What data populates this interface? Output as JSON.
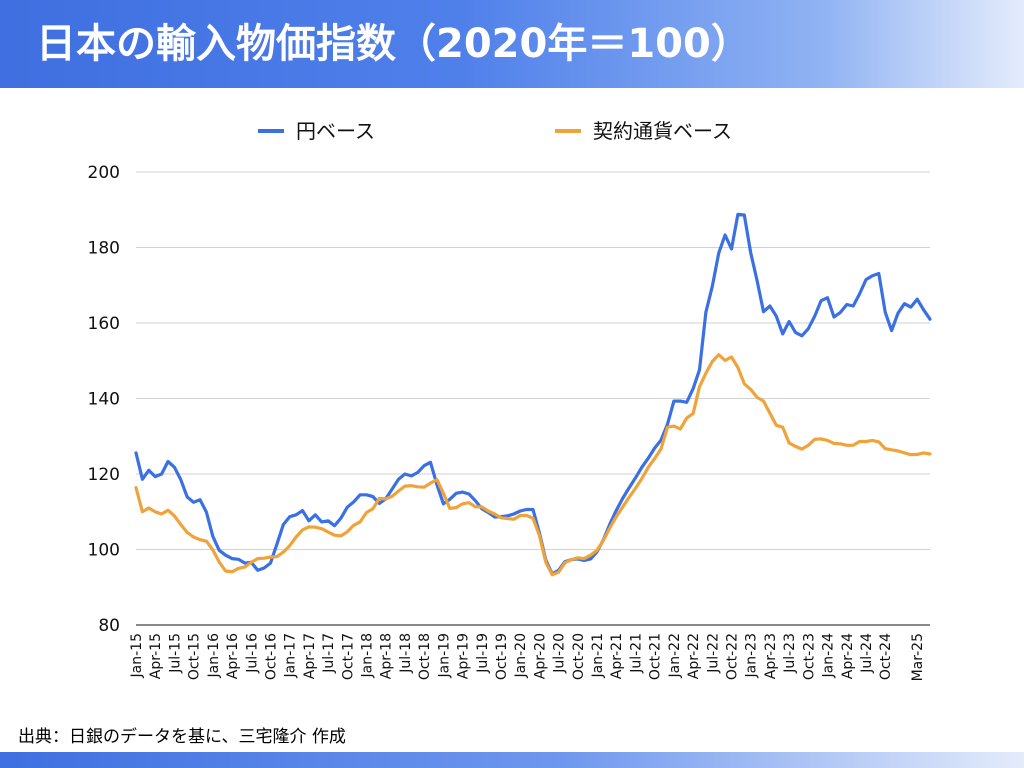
{
  "title": "日本の輸入物価指数（2020年＝100）",
  "source": "出典：日銀のデータを基に、三宅隆介 作成",
  "chart_data": {
    "type": "line",
    "title": "",
    "xlabel": "",
    "ylabel": "",
    "ylim": [
      80,
      200
    ],
    "yticks": [
      80,
      100,
      120,
      140,
      160,
      180,
      200
    ],
    "grid": true,
    "legend_position": "top",
    "x": [
      "Jan-15",
      "Feb-15",
      "Mar-15",
      "Apr-15",
      "May-15",
      "Jun-15",
      "Jul-15",
      "Aug-15",
      "Sep-15",
      "Oct-15",
      "Nov-15",
      "Dec-15",
      "Jan-16",
      "Feb-16",
      "Mar-16",
      "Apr-16",
      "May-16",
      "Jun-16",
      "Jul-16",
      "Aug-16",
      "Sep-16",
      "Oct-16",
      "Nov-16",
      "Dec-16",
      "Jan-17",
      "Feb-17",
      "Mar-17",
      "Apr-17",
      "May-17",
      "Jun-17",
      "Jul-17",
      "Aug-17",
      "Sep-17",
      "Oct-17",
      "Nov-17",
      "Dec-17",
      "Jan-18",
      "Feb-18",
      "Mar-18",
      "Apr-18",
      "May-18",
      "Jun-18",
      "Jul-18",
      "Aug-18",
      "Sep-18",
      "Oct-18",
      "Nov-18",
      "Dec-18",
      "Jan-19",
      "Feb-19",
      "Mar-19",
      "Apr-19",
      "May-19",
      "Jun-19",
      "Jul-19",
      "Aug-19",
      "Sep-19",
      "Oct-19",
      "Nov-19",
      "Dec-19",
      "Jan-20",
      "Feb-20",
      "Mar-20",
      "Apr-20",
      "May-20",
      "Jun-20",
      "Jul-20",
      "Aug-20",
      "Sep-20",
      "Oct-20",
      "Nov-20",
      "Dec-20",
      "Jan-21",
      "Feb-21",
      "Mar-21",
      "Apr-21",
      "May-21",
      "Jun-21",
      "Jul-21",
      "Aug-21",
      "Sep-21",
      "Oct-21",
      "Nov-21",
      "Dec-21",
      "Jan-22",
      "Feb-22",
      "Mar-22",
      "Apr-22",
      "May-22",
      "Jun-22",
      "Jul-22",
      "Aug-22",
      "Sep-22",
      "Oct-22",
      "Nov-22",
      "Dec-22",
      "Jan-23",
      "Feb-23",
      "Mar-23",
      "Apr-23",
      "May-23",
      "Jun-23",
      "Jul-23",
      "Aug-23",
      "Sep-23",
      "Oct-23",
      "Nov-23",
      "Dec-23",
      "Jan-24",
      "Feb-24",
      "Mar-24",
      "Apr-24",
      "May-24",
      "Jun-24",
      "Jul-24",
      "Aug-24",
      "Sep-24",
      "Oct-24",
      "Nov-24",
      "Dec-24",
      "Jan-25",
      "Feb-25",
      "Mar-25",
      "Apr-25",
      "May-25"
    ],
    "tick_labels": [
      "Jan-15",
      "Apr-15",
      "Jul-15",
      "Oct-15",
      "Jan-16",
      "Apr-16",
      "Jul-16",
      "Oct-16",
      "Jan-17",
      "Apr-17",
      "Jul-17",
      "Oct-17",
      "Jan-18",
      "Apr-18",
      "Jul-18",
      "Oct-18",
      "Jan-19",
      "Apr-19",
      "Jul-19",
      "Oct-19",
      "Jan-20",
      "Apr-20",
      "Jul-20",
      "Oct-20",
      "Jan-21",
      "Apr-21",
      "Jul-21",
      "Oct-21",
      "Jan-22",
      "Apr-22",
      "Jul-22",
      "Oct-22",
      "Jan-23",
      "Apr-23",
      "Jul-23",
      "Oct-23",
      "Jan-24",
      "Apr-24",
      "Jul-24",
      "Oct-24",
      "Mar-25"
    ],
    "series": [
      {
        "name": "円ベース",
        "color": "#3a70e3",
        "values": [
          125.6,
          118.6,
          121.0,
          119.3,
          120.0,
          123.3,
          121.8,
          118.5,
          113.9,
          112.5,
          113.2,
          109.9,
          103.5,
          99.8,
          98.5,
          97.6,
          97.4,
          96.4,
          96.6,
          94.5,
          95.1,
          96.4,
          101.4,
          106.6,
          108.7,
          109.2,
          110.3,
          107.6,
          109.2,
          107.3,
          107.6,
          106.3,
          108.3,
          111.2,
          112.6,
          114.5,
          114.5,
          114.0,
          112.2,
          113.4,
          116.0,
          118.6,
          120.0,
          119.5,
          120.4,
          122.2,
          123.1,
          117.1,
          112.1,
          113.3,
          114.9,
          115.2,
          114.7,
          112.9,
          110.8,
          109.8,
          108.6,
          108.7,
          108.9,
          109.4,
          110.2,
          110.6,
          110.6,
          104.4,
          97.2,
          93.5,
          94.5,
          96.8,
          97.3,
          97.5,
          97.1,
          97.5,
          99.4,
          102.6,
          106.7,
          110.3,
          113.5,
          116.3,
          119.0,
          121.8,
          124.2,
          126.9,
          129.0,
          133.2,
          139.3,
          139.3,
          139.0,
          142.6,
          147.6,
          162.9,
          169.7,
          178.5,
          183.3,
          179.6,
          188.8,
          188.6,
          178.6,
          171.2,
          163.0,
          164.5,
          161.8,
          157.1,
          160.4,
          157.5,
          156.6,
          158.5,
          161.8,
          165.9,
          166.7,
          161.6,
          162.8,
          164.9,
          164.5,
          167.7,
          171.5,
          172.5,
          173.1,
          162.9,
          158.0,
          162.6,
          165.1,
          164.2,
          166.3,
          163.5,
          161.0
        ]
      },
      {
        "name": "契約通貨ベース",
        "color": "#f0a33a",
        "values": [
          116.4,
          110.0,
          111.0,
          110.0,
          109.4,
          110.4,
          108.9,
          106.6,
          104.5,
          103.3,
          102.6,
          102.2,
          99.9,
          96.7,
          94.3,
          94.1,
          95.0,
          95.4,
          96.6,
          97.6,
          97.7,
          98.0,
          98.1,
          99.3,
          101.0,
          103.3,
          105.2,
          106.0,
          105.9,
          105.5,
          104.6,
          103.8,
          103.6,
          104.7,
          106.4,
          107.3,
          109.8,
          110.8,
          113.5,
          113.4,
          114.1,
          115.5,
          116.8,
          116.9,
          116.6,
          116.5,
          117.6,
          118.5,
          114.9,
          110.9,
          111.1,
          112.1,
          112.4,
          111.3,
          111.3,
          110.2,
          109.4,
          108.4,
          108.2,
          108.0,
          109.0,
          109.0,
          108.3,
          103.7,
          96.6,
          93.3,
          94.0,
          96.5,
          97.3,
          97.8,
          97.6,
          98.5,
          99.8,
          102.4,
          105.7,
          108.7,
          111.2,
          113.8,
          116.2,
          118.8,
          121.8,
          124.1,
          126.7,
          132.4,
          132.7,
          131.9,
          134.8,
          136.0,
          143.1,
          146.7,
          149.8,
          151.6,
          150.1,
          151.0,
          148.2,
          143.9,
          142.4,
          140.3,
          139.3,
          136.1,
          132.9,
          132.4,
          128.2,
          127.3,
          126.6,
          127.6,
          129.2,
          129.3,
          128.9,
          128.1,
          128.0,
          127.6,
          127.6,
          128.6,
          128.6,
          128.9,
          128.5,
          126.7,
          126.4,
          126.1,
          125.6,
          125.1,
          125.2,
          125.6,
          125.3
        ]
      }
    ]
  }
}
